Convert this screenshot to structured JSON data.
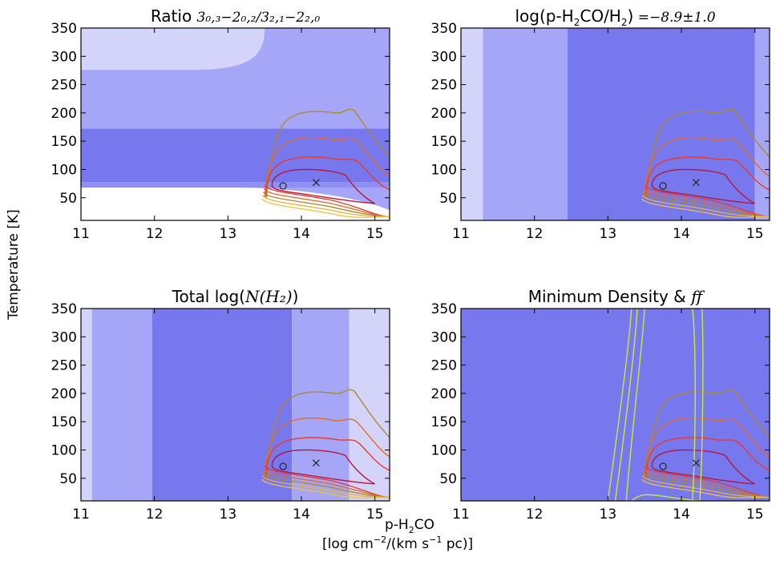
{
  "figure": {
    "ylabel": "Temperature [K]",
    "xlabel_line1": "p-H",
    "xlabel_line1_sub": "2",
    "xlabel_line1_tail": "CO",
    "xlabel_line2_open": "[log cm",
    "xlabel_line2_sup1": "−2",
    "xlabel_line2_mid": "/(km s",
    "xlabel_line2_sup2": "−1",
    "xlabel_line2_close": " pc)]"
  },
  "colors": {
    "band_lightest": "#d4d4fb",
    "band_light": "#a6a6f8",
    "band_mid": "#8f8ff4",
    "band_dark": "#7878ee",
    "chi2_contours": [
      "#aa8a2c",
      "#e06a2a",
      "#e8392e",
      "#b5173a",
      "#7a1030"
    ],
    "density_contours": "#c8e83a"
  },
  "chart_data": [
    {
      "type": "contour",
      "title_text": "Ratio ",
      "title_math": "3₀,₃−2₀,₂/3₂,₁−2₂,₀",
      "xlim": [
        11,
        15.2
      ],
      "ylim": [
        10,
        350
      ],
      "xticks": [
        11,
        12,
        13,
        14,
        15
      ],
      "yticks": [
        50,
        100,
        150,
        200,
        250,
        300,
        350
      ],
      "shading": "horizontal bands of constrained temperature from the line ratio",
      "markers": {
        "circle": [
          13.75,
          71
        ],
        "cross": [
          14.2,
          77
        ]
      }
    },
    {
      "type": "contour",
      "title_text": "log(p-H",
      "title_sub": "2",
      "title_text2": "CO/H",
      "title_sub2": "2",
      "title_text3": ")",
      "title_math": " =−8.9±1.0",
      "xlim": [
        11,
        15.2
      ],
      "ylim": [
        10,
        350
      ],
      "xticks": [
        11,
        12,
        13,
        14,
        15
      ],
      "yticks": [
        50,
        100,
        150,
        200,
        250,
        300,
        350
      ],
      "shading": "vertical bands of abundance constraint",
      "markers": {
        "circle": [
          13.75,
          71
        ],
        "cross": [
          14.2,
          77
        ]
      }
    },
    {
      "type": "contour",
      "title_text": "Total log(",
      "title_math": "N(H₂)",
      "title_text2": ")",
      "xlim": [
        11,
        15.2
      ],
      "ylim": [
        10,
        350
      ],
      "xticks": [
        11,
        12,
        13,
        14,
        15
      ],
      "yticks": [
        50,
        100,
        150,
        200,
        250,
        300,
        350
      ],
      "shading": "vertical bands of total column constraint",
      "markers": {
        "circle": [
          13.75,
          71
        ],
        "cross": [
          14.2,
          77
        ]
      }
    },
    {
      "type": "contour",
      "title_text": "Minimum Density & ",
      "title_math": "ff",
      "xlim": [
        11,
        15.2
      ],
      "ylim": [
        10,
        350
      ],
      "xticks": [
        11,
        12,
        13,
        14,
        15
      ],
      "yticks": [
        50,
        100,
        150,
        200,
        250,
        300,
        350
      ],
      "shading": "uniform background with filling-factor contours",
      "markers": {
        "circle": [
          13.75,
          71
        ],
        "cross": [
          14.2,
          77
        ]
      }
    }
  ]
}
